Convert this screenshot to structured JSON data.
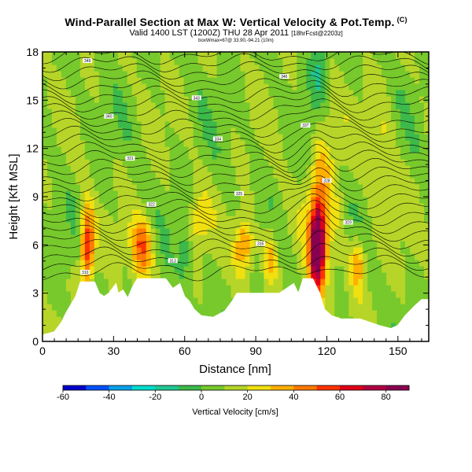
{
  "header": {
    "title": "Wind-Parallel Section at Max W: Vertical Velocity & Pot.Temp.",
    "title_mark": "(C)",
    "valid_line": "Valid 1400 LST (1200Z) THU 28 Apr 2011",
    "valid_suffix": "[18hrFcst@2203z]",
    "info_line": "boxWmax=67@ 33.90,-94.21 (10m)"
  },
  "chart_data": {
    "type": "heatmap",
    "title": "Wind-Parallel Section at Max W: Vertical Velocity & Pot.Temp.",
    "xlabel": "Distance [nm]",
    "ylabel": "Height [Kft MSL]",
    "xlim": [
      0,
      163
    ],
    "ylim": [
      0,
      18
    ],
    "x_ticks": [
      0,
      30,
      60,
      90,
      120,
      150
    ],
    "y_ticks": [
      0,
      3,
      6,
      9,
      12,
      15,
      18
    ],
    "colorbar": {
      "label": "Vertical Velocity [cm/s]",
      "ticks": [
        -60,
        -40,
        -20,
        0,
        20,
        40,
        60,
        80
      ],
      "range": [
        -60,
        90
      ],
      "colors": [
        "#0000cc",
        "#0050ff",
        "#0a9fe8",
        "#00dccd",
        "#21c793",
        "#3cb94a",
        "#77c92c",
        "#b6d528",
        "#f0e010",
        "#ffb000",
        "#ff7a00",
        "#ff3300",
        "#e00018",
        "#b00040",
        "#8a0050"
      ]
    },
    "terrain_top": [
      [
        0,
        0.4
      ],
      [
        5,
        0.6
      ],
      [
        8,
        1.2
      ],
      [
        10,
        1.8
      ],
      [
        12,
        2.3
      ],
      [
        14,
        2.8
      ],
      [
        16,
        3.7
      ],
      [
        22,
        3.7
      ],
      [
        24,
        3.0
      ],
      [
        26,
        2.8
      ],
      [
        28,
        3.0
      ],
      [
        31,
        3.6
      ],
      [
        32,
        3.0
      ],
      [
        34,
        3.2
      ],
      [
        36,
        2.7
      ],
      [
        38,
        3.4
      ],
      [
        40,
        3.9
      ],
      [
        52,
        3.9
      ],
      [
        55,
        3.3
      ],
      [
        58,
        3.6
      ],
      [
        60,
        2.8
      ],
      [
        62,
        2.5
      ],
      [
        64,
        2.0
      ],
      [
        67,
        1.6
      ],
      [
        72,
        1.5
      ],
      [
        77,
        1.9
      ],
      [
        80,
        2.5
      ],
      [
        82,
        3.0
      ],
      [
        100,
        3.0
      ],
      [
        103,
        3.3
      ],
      [
        106,
        3.6
      ],
      [
        108,
        3.0
      ],
      [
        110,
        3.9
      ],
      [
        114,
        3.9
      ],
      [
        117,
        3.0
      ],
      [
        119,
        2.0
      ],
      [
        122,
        1.6
      ],
      [
        126,
        1.4
      ],
      [
        134,
        1.4
      ],
      [
        138,
        1.2
      ],
      [
        142,
        1.0
      ],
      [
        147,
        0.8
      ],
      [
        150,
        1.0
      ],
      [
        153,
        1.6
      ],
      [
        157,
        2.2
      ],
      [
        160,
        2.6
      ],
      [
        163,
        2.6
      ]
    ],
    "updrafts": [
      {
        "x": 19,
        "y": 6.0,
        "peak": 55,
        "sx": 2.0,
        "sy": 1.8
      },
      {
        "x": 42,
        "y": 5.8,
        "peak": 42,
        "sx": 3.2,
        "sy": 1.4
      },
      {
        "x": 85,
        "y": 6.0,
        "peak": 38,
        "sx": 3.0,
        "sy": 1.3
      },
      {
        "x": 116,
        "y": 5.8,
        "peak": 88,
        "sx": 2.2,
        "sy": 1.8
      },
      {
        "x": 118,
        "y": 9.5,
        "peak": 24,
        "sx": 5.0,
        "sy": 4.0
      },
      {
        "x": 133,
        "y": 4.8,
        "peak": 32,
        "sx": 2.4,
        "sy": 1.2
      },
      {
        "x": 96,
        "y": 5.2,
        "peak": 26,
        "sx": 2.2,
        "sy": 1.2
      },
      {
        "x": 66,
        "y": 7.6,
        "peak": 18,
        "sx": 3.0,
        "sy": 1.2
      },
      {
        "x": 143,
        "y": 11.0,
        "peak": 14,
        "sx": 4.0,
        "sy": 3.0
      }
    ],
    "downdrafts": [
      {
        "x": 117,
        "y": 16.8,
        "peak": -22,
        "sx": 3.0,
        "sy": 1.5
      },
      {
        "x": 60,
        "y": 5.5,
        "peak": -16,
        "sx": 2.0,
        "sy": 1.3
      },
      {
        "x": 113,
        "y": 12.5,
        "peak": -12,
        "sx": 2.0,
        "sy": 1.6
      }
    ],
    "theta_contour_labels": [
      "310",
      "313",
      "316",
      "319",
      "322",
      "325",
      "328",
      "331",
      "334",
      "337",
      "340",
      "343",
      "346",
      "349",
      "352"
    ]
  }
}
